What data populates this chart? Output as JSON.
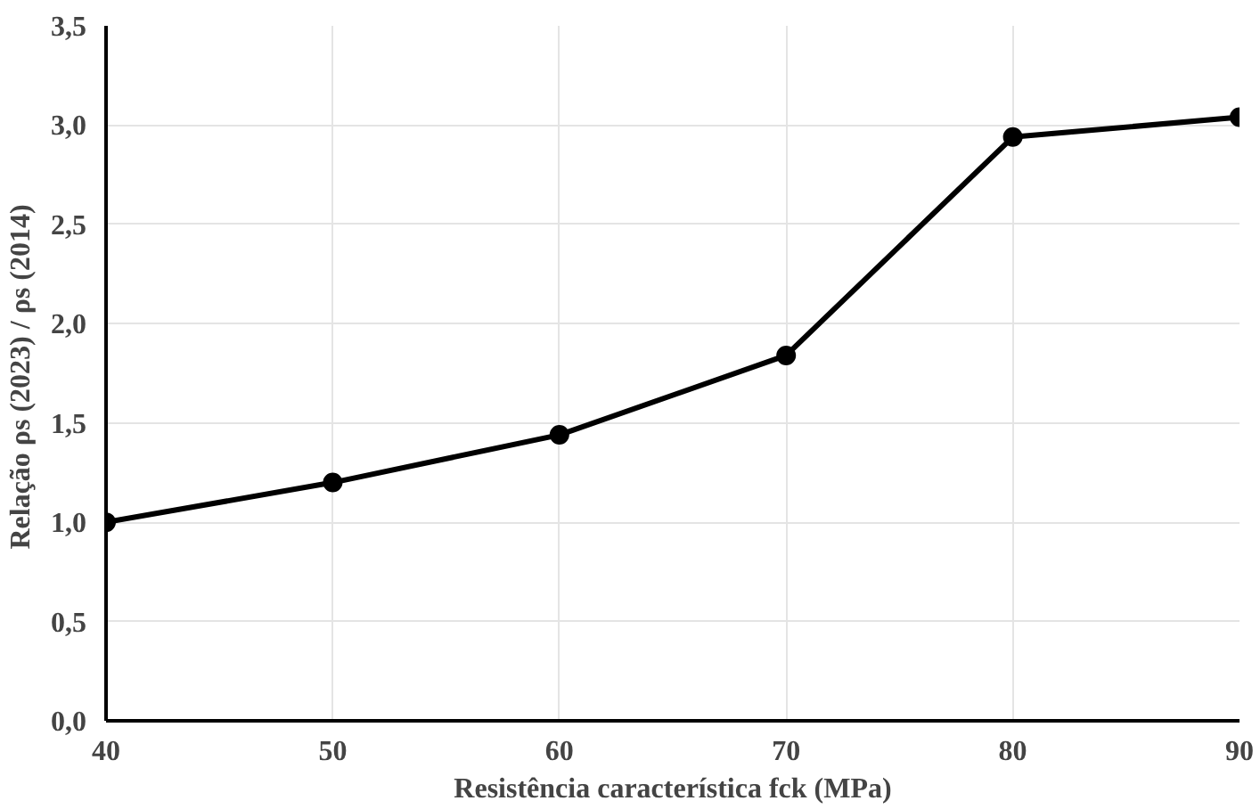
{
  "chart_data": {
    "type": "line",
    "xlabel": "Resistência característica fck (MPa)",
    "ylabel": "Relação  ρs (2023) / ρs (2014)",
    "x": [
      40,
      50,
      60,
      70,
      80,
      90
    ],
    "series": [
      {
        "color": "#000000",
        "values": [
          1.0,
          1.2,
          1.44,
          1.84,
          2.94,
          3.04
        ]
      }
    ],
    "xlim": [
      40,
      90
    ],
    "xticks": [
      40,
      50,
      60,
      70,
      80,
      90
    ],
    "ylim": [
      0,
      3.5
    ],
    "yticks": [
      {
        "value": 0,
        "label": "0,0"
      },
      {
        "value": 0.5,
        "label": "0,5"
      },
      {
        "value": 1,
        "label": "1,0"
      },
      {
        "value": 1.5,
        "label": "1,5"
      },
      {
        "value": 2,
        "label": "2,0"
      },
      {
        "value": 2.5,
        "label": "2,5"
      },
      {
        "value": 3,
        "label": "3,0"
      },
      {
        "value": 3.5,
        "label": "3,5"
      }
    ],
    "grid": true,
    "marker": "circle",
    "line_style": "solid"
  }
}
